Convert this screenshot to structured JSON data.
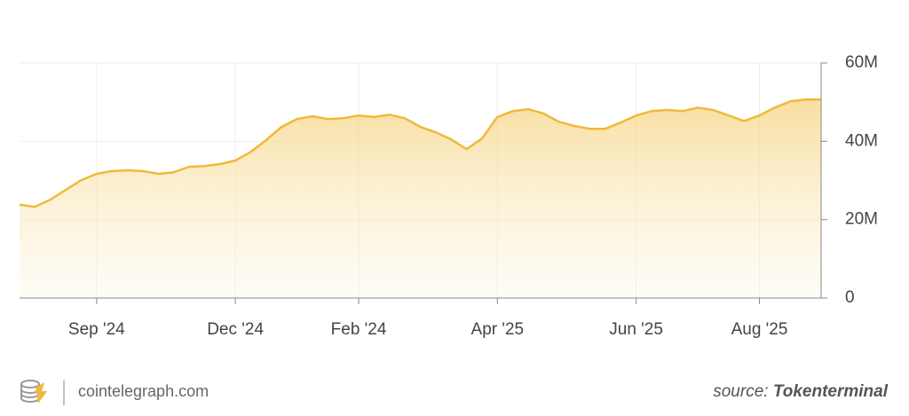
{
  "chart_data": {
    "type": "area",
    "categories": [
      null,
      null,
      null,
      null,
      null,
      "Sep '24",
      null,
      null,
      null,
      null,
      null,
      null,
      null,
      null,
      "Dec '24",
      null,
      null,
      null,
      null,
      null,
      null,
      null,
      "Feb '24",
      null,
      null,
      null,
      null,
      null,
      null,
      null,
      null,
      "Apr '25",
      null,
      null,
      null,
      null,
      null,
      null,
      null,
      null,
      "Jun '25",
      null,
      null,
      null,
      null,
      null,
      null,
      null,
      "Aug '25",
      null,
      null,
      null,
      null
    ],
    "values": [
      23800000,
      23300000,
      25100000,
      27600000,
      30100000,
      31700000,
      32400000,
      32600000,
      32400000,
      31700000,
      32100000,
      33500000,
      33700000,
      34200000,
      35100000,
      37300000,
      40300000,
      43700000,
      45700000,
      46400000,
      45700000,
      45900000,
      46600000,
      46200000,
      46800000,
      45900000,
      43700000,
      42300000,
      40500000,
      38000000,
      40700000,
      46200000,
      47700000,
      48200000,
      47100000,
      45000000,
      43900000,
      43200000,
      43200000,
      44800000,
      46600000,
      47700000,
      48000000,
      47700000,
      48600000,
      48000000,
      46600000,
      45200000,
      46600000,
      48600000,
      50200000,
      50700000,
      50700000
    ],
    "color": "#f0b93a",
    "ylim": [
      0,
      60000000
    ],
    "yticks": [
      0,
      {
        "value": 20000000,
        "label": "20M"
      },
      {
        "value": 40000000,
        "label": "40M"
      },
      {
        "value": 60000000,
        "label": "60M"
      }
    ],
    "grid": true
  },
  "footer": {
    "brand": "cointelegraph.com",
    "source_prefix": "source:",
    "source": "Tokenterminal"
  }
}
